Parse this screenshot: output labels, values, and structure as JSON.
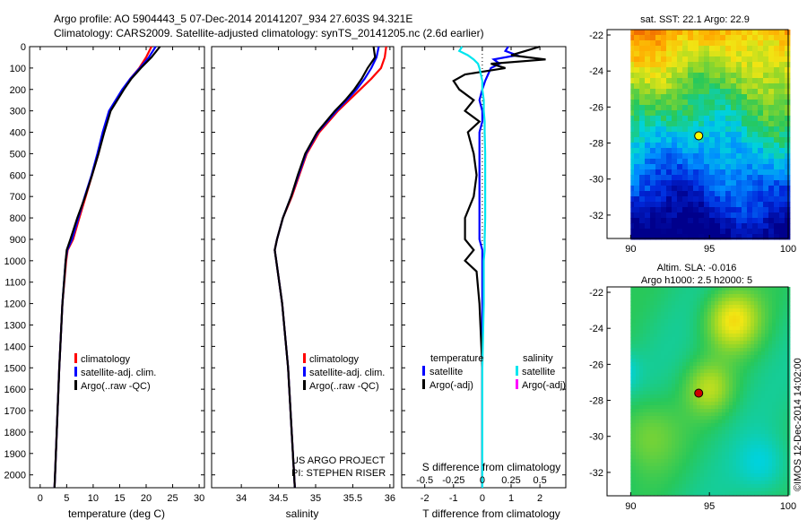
{
  "header": {
    "line1": "Argo profile: AO 5904443_5 07-Dec-2014 20141207_934 27.603S 94.321E",
    "line2": "Climatology: CARS2009. Satellite-adjusted climatology: synTS_20141205.nc (2.6d earlier)"
  },
  "credit": "©IMOS 12-Dec-2014 14:02:00",
  "colors": {
    "climatology": "#ff0000",
    "satellite": "#0000ff",
    "argo": "#000000",
    "salinity_satellite": "#00e5ee",
    "salinity_argo": "#ff00ff"
  },
  "chart_data": [
    {
      "type": "line",
      "id": "temperature-profile",
      "xlabel": "temperature (deg C)",
      "xlim": [
        -2,
        31
      ],
      "xticks": [
        "0",
        "5",
        "10",
        "15",
        "20",
        "25",
        "30"
      ],
      "ylim": [
        0,
        2060
      ],
      "yticks": [
        "0",
        "100",
        "200",
        "300",
        "400",
        "500",
        "600",
        "700",
        "800",
        "900",
        "1000",
        "1100",
        "1200",
        "1300",
        "1400",
        "1500",
        "1600",
        "1700",
        "1800",
        "1900",
        "2000"
      ],
      "legend": [
        "climatology",
        "satellite-adj. clim.",
        "Argo(..raw -QC)"
      ],
      "depth": [
        0,
        50,
        100,
        150,
        200,
        300,
        400,
        500,
        600,
        700,
        800,
        900,
        950,
        1000,
        1200,
        1500,
        2000,
        2060
      ],
      "series": [
        {
          "name": "climatology",
          "values": [
            21.0,
            20.0,
            18.7,
            17.0,
            15.6,
            13.2,
            12.0,
            11.0,
            9.8,
            8.6,
            7.4,
            6.2,
            5.2,
            4.9,
            4.2,
            3.6,
            2.8,
            2.7
          ]
        },
        {
          "name": "satellite-adj. clim.",
          "values": [
            21.8,
            20.5,
            18.8,
            17.0,
            15.5,
            13.0,
            11.8,
            10.8,
            9.7,
            8.4,
            7.2,
            6.0,
            5.1,
            4.8,
            4.2,
            3.6,
            2.8,
            2.7
          ]
        },
        {
          "name": "Argo(..raw -QC)",
          "values": [
            22.6,
            21.0,
            19.0,
            17.2,
            15.8,
            13.3,
            12.1,
            11.0,
            9.8,
            8.5,
            7.0,
            5.7,
            5.0,
            4.8,
            4.2,
            3.6,
            2.8,
            2.7
          ]
        }
      ]
    },
    {
      "type": "line",
      "id": "salinity-profile",
      "xlabel": "salinity",
      "xlim": [
        33.6,
        36.05
      ],
      "xticks": [
        "34",
        "34.5",
        "35",
        "35.5",
        "36"
      ],
      "ylim": [
        0,
        2060
      ],
      "legend": [
        "climatology",
        "satellite-adj. clim.",
        "Argo(..raw -QC)"
      ],
      "annotation": [
        "US ARGO PROJECT",
        "PI: STEPHEN RISER"
      ],
      "depth": [
        0,
        50,
        100,
        150,
        200,
        250,
        300,
        400,
        500,
        600,
        700,
        800,
        900,
        950,
        1000,
        1200,
        1500,
        2000,
        2060
      ],
      "series": [
        {
          "name": "climatology",
          "values": [
            35.95,
            35.93,
            35.88,
            35.75,
            35.6,
            35.45,
            35.3,
            35.05,
            34.88,
            34.78,
            34.68,
            34.56,
            34.48,
            34.45,
            34.47,
            34.55,
            34.63,
            34.71,
            34.72
          ]
        },
        {
          "name": "satellite-adj. clim.",
          "values": [
            35.85,
            35.82,
            35.75,
            35.66,
            35.55,
            35.42,
            35.28,
            35.03,
            34.87,
            34.77,
            34.67,
            34.56,
            34.48,
            34.45,
            34.47,
            34.55,
            34.63,
            34.71,
            34.72
          ]
        },
        {
          "name": "Argo(..raw -QC)",
          "values": [
            35.78,
            35.8,
            35.7,
            35.62,
            35.52,
            35.4,
            35.26,
            35.02,
            34.86,
            34.76,
            34.67,
            34.56,
            34.48,
            34.45,
            34.47,
            34.55,
            34.63,
            34.71,
            34.72
          ]
        }
      ]
    },
    {
      "type": "line",
      "id": "difference-profile",
      "xlabel": "T difference from climatology",
      "xlabel_top": "S difference from climatology",
      "xlim": [
        -2.8,
        2.9
      ],
      "xticks": [
        "-2",
        "-1",
        "0",
        "1",
        "2"
      ],
      "xticks_top": [
        "-0.5",
        "-0.25",
        "0",
        "0.25",
        "0.5"
      ],
      "ylim": [
        0,
        2060
      ],
      "legend_titles": [
        "temperature",
        "salinity"
      ],
      "legend": [
        "satellite",
        "Argo(-adj)",
        "satellite",
        "Argo(-adj)"
      ],
      "depth": [
        0,
        20,
        40,
        60,
        80,
        100,
        130,
        160,
        200,
        250,
        300,
        350,
        400,
        500,
        600,
        700,
        800,
        900,
        950,
        1000,
        1050,
        1200,
        1500,
        2000,
        2060
      ],
      "series": [
        {
          "name": "temperature satellite",
          "values": [
            0.9,
            0.8,
            1.2,
            0.4,
            0.6,
            0.3,
            0.2,
            0.1,
            0.0,
            -0.1,
            0.0,
            0.0,
            -0.1,
            -0.1,
            -0.1,
            -0.1,
            -0.1,
            -0.1,
            0.0,
            0.0,
            0.0,
            0.0,
            0.0,
            0.0,
            0.0
          ]
        },
        {
          "name": "temperature Argo(-adj)",
          "values": [
            2.0,
            1.5,
            1.0,
            2.2,
            0.3,
            0.8,
            -0.6,
            -1.0,
            -0.8,
            -0.3,
            -0.6,
            -0.1,
            -0.5,
            -0.3,
            -0.2,
            -0.3,
            -0.6,
            -0.6,
            -0.3,
            -0.6,
            -0.2,
            -0.1,
            0.0,
            0.0,
            0.0
          ]
        },
        {
          "name": "salinity satellite",
          "values": [
            -0.7,
            -0.8,
            -0.5,
            -0.3,
            -0.15,
            -0.1,
            -0.05,
            0.0,
            0.0,
            0.05,
            0.05,
            0.08,
            0.08,
            0.1,
            0.1,
            0.1,
            0.1,
            0.08,
            0.08,
            0.05,
            0.05,
            0.05,
            0.0,
            0.0,
            0.0
          ]
        },
        {
          "name": "salinity Argo(-adj)",
          "values": []
        }
      ]
    },
    {
      "type": "heatmap",
      "id": "sst-map",
      "title": "sat. SST: 22.1  Argo: 22.9",
      "xticks": [
        "90",
        "95",
        "100"
      ],
      "yticks": [
        "-22",
        "-24",
        "-26",
        "-28",
        "-30",
        "-32"
      ],
      "xlim": [
        88.5,
        100
      ],
      "ylim": [
        -33.3,
        -21.7
      ],
      "marker": {
        "lon": 94.32,
        "lat": -27.6,
        "color": "#ffff00"
      }
    },
    {
      "type": "heatmap",
      "id": "sla-map",
      "title": [
        "Altim. SLA: -0.016",
        "Argo h1000: 2.5 h2000: 5"
      ],
      "xticks": [
        "90",
        "95",
        "100"
      ],
      "yticks": [
        "-22",
        "-24",
        "-26",
        "-28",
        "-30",
        "-32"
      ],
      "xlim": [
        88.5,
        100
      ],
      "ylim": [
        -33.3,
        -21.7
      ],
      "marker": {
        "lon": 94.32,
        "lat": -27.6,
        "color": "#cc0000"
      }
    }
  ]
}
